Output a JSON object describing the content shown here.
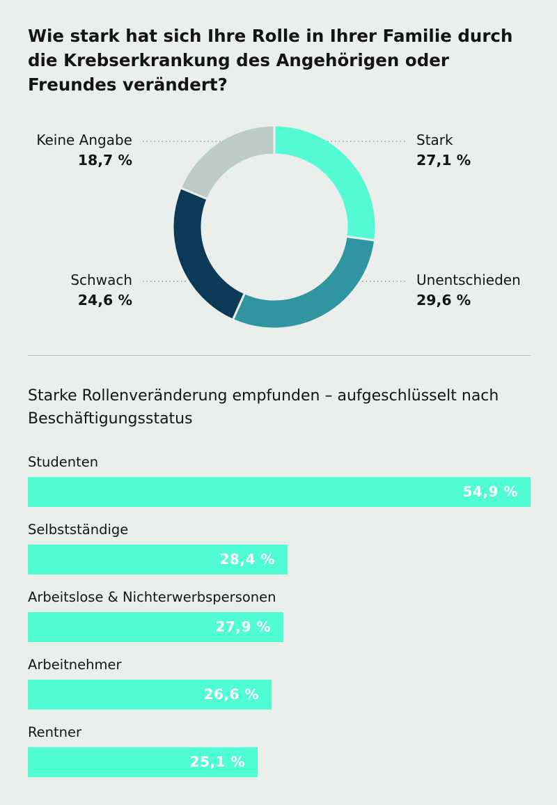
{
  "title": "Wie stark hat sich Ihre Rolle in Ihrer Familie durch die Krebserkrankung des Angehörigen oder Freundes verändert?",
  "subtitle": "Starke Rollenveränderung empfunden – aufgeschlüsselt nach Beschäftigungsstatus",
  "chart_data": [
    {
      "type": "pie",
      "style": "donut",
      "slices": [
        {
          "label": "Stark",
          "value": 27.1,
          "display": "27,1 %",
          "color": "#53fad3"
        },
        {
          "label": "Unentschieden",
          "value": 29.6,
          "display": "29,6 %",
          "color": "#2f95a0"
        },
        {
          "label": "Schwach",
          "value": 24.6,
          "display": "24,6 %",
          "color": "#0b3a58"
        },
        {
          "label": "Keine Angabe",
          "value": 18.7,
          "display": "18,7 %",
          "color": "#bdcbc7"
        }
      ]
    },
    {
      "type": "bar",
      "orientation": "horizontal",
      "color": "#4ffcd4",
      "categories": [
        "Studenten",
        "Selbstständige",
        "Arbeitslose & Nichterwerbspersonen",
        "Arbeitnehmer",
        "Rentner"
      ],
      "values": [
        54.9,
        28.4,
        27.9,
        26.6,
        25.1
      ],
      "display": [
        "54,9 %",
        "28,4 %",
        "27,9 %",
        "26,6 %",
        "25,1 %"
      ]
    }
  ]
}
